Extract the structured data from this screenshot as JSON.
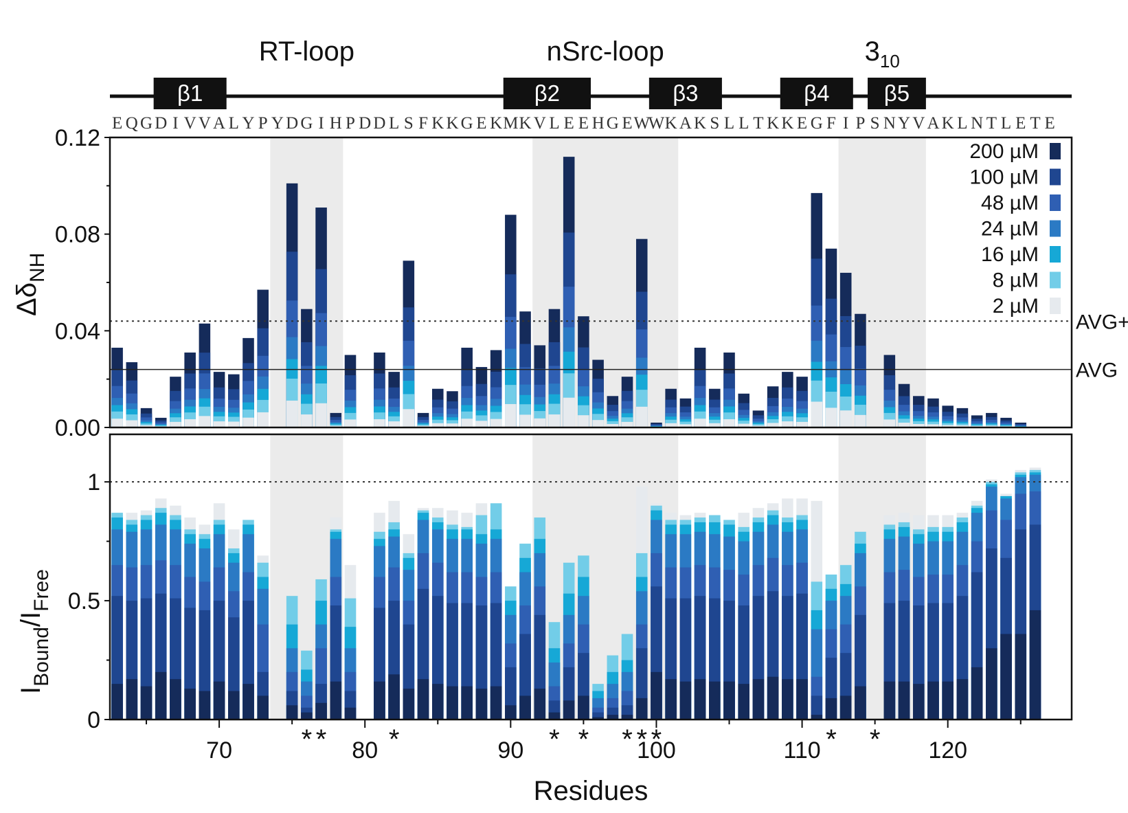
{
  "figure": {
    "sequence": "EQGDIVVALYPYDGIHPDDLSFKKGEKMKVLEEHGEWWKAKSLLTKKEGFIPSNYVAKLNTLETE",
    "first_residue": 63,
    "loops": [
      {
        "label": "RT-loop",
        "from": 73.5,
        "to": 78.5
      },
      {
        "label": "nSrc-loop",
        "from": 91.5,
        "to": 101.5
      },
      {
        "label": "3",
        "sub": "10",
        "from": 112.5,
        "to": 118.5
      }
    ],
    "strands": [
      {
        "label": "β1",
        "from": 66,
        "to": 70
      },
      {
        "label": "β2",
        "from": 90,
        "to": 95
      },
      {
        "label": "β3",
        "from": 100,
        "to": 104
      },
      {
        "label": "β4",
        "from": 109,
        "to": 113
      },
      {
        "label": "β5",
        "from": 115,
        "to": 118
      }
    ],
    "upper_avg_labels": {
      "avg_plus": "AVG+",
      "avg": "AVG"
    },
    "upper_ylabel": {
      "main": "Δδ",
      "sub": "NH"
    },
    "lower_ylabel": {
      "main": "I",
      "sub1": "Bound",
      "mid": "/I",
      "sub2": "Free"
    },
    "xlabel": "Residues",
    "star_glyph": "*"
  },
  "colors": {
    "200": "#152b5a",
    "100": "#1f4690",
    "48": "#2f5fb3",
    "24": "#2b7ac4",
    "16": "#16a8d6",
    "8": "#72cde8",
    "2": "#e6eaee",
    "shade": "#ebebeb"
  },
  "chart_data": [
    {
      "type": "bar",
      "stacked": true,
      "ylabel": "ΔδNH",
      "xlim": [
        62.5,
        128.5
      ],
      "ylim": [
        0,
        0.12
      ],
      "yticks": [
        "0.00",
        "0.04",
        "0.08",
        "0.12"
      ],
      "avg": 0.024,
      "avg_plus_sd": 0.044,
      "series_order": [
        "2 µM",
        "8 µM",
        "16 µM",
        "24 µM",
        "48 µM",
        "100 µM",
        "200 µM"
      ],
      "legend": [
        "200 µM",
        "100 µM",
        "48 µM",
        "24 µM",
        "16 µM",
        "8 µM",
        "2 µM"
      ],
      "legend_position": "top-right",
      "residues": [
        63,
        64,
        65,
        66,
        67,
        68,
        69,
        70,
        71,
        72,
        73,
        75,
        76,
        77,
        78,
        79,
        81,
        82,
        83,
        84,
        85,
        86,
        87,
        88,
        89,
        90,
        91,
        92,
        93,
        94,
        95,
        96,
        97,
        98,
        99,
        100,
        101,
        102,
        103,
        104,
        105,
        106,
        107,
        108,
        109,
        110,
        111,
        112,
        113,
        114,
        116,
        117,
        118,
        119,
        120,
        121,
        122,
        123,
        124,
        125,
        126,
        127,
        128
      ],
      "totals": [
        0.033,
        0.027,
        0.008,
        0.004,
        0.021,
        0.031,
        0.043,
        0.023,
        0.022,
        0.037,
        0.057,
        0.101,
        0.049,
        0.091,
        0.006,
        0.03,
        0.031,
        0.023,
        0.069,
        0.006,
        0.016,
        0.015,
        0.033,
        0.025,
        0.032,
        0.088,
        0.048,
        0.034,
        0.049,
        0.112,
        0.046,
        0.028,
        0.013,
        0.021,
        0.078,
        0.002,
        0.016,
        0.012,
        0.033,
        0.016,
        0.031,
        0.014,
        0.007,
        0.017,
        0.023,
        0.021,
        0.097,
        0.074,
        0.064,
        0.047,
        0.03,
        0.018,
        0.013,
        0.012,
        0.009,
        0.008,
        0.005,
        0.006,
        0.004,
        0.002,
        0,
        0,
        0
      ],
      "series": [
        {
          "name": "2 µM",
          "fraction": 0.11
        },
        {
          "name": "8 µM",
          "fraction": 0.2
        },
        {
          "name": "16 µM",
          "fraction": 0.28
        },
        {
          "name": "24 µM",
          "fraction": 0.37
        },
        {
          "name": "48 µM",
          "fraction": 0.52
        },
        {
          "name": "100 µM",
          "fraction": 0.72
        },
        {
          "name": "200 µM",
          "fraction": 1.0
        }
      ]
    },
    {
      "type": "bar",
      "stacked": true,
      "ylabel": "IBound/IFree",
      "xlabel": "Residues",
      "xlim": [
        62.5,
        128.5
      ],
      "ylim": [
        0,
        1.2
      ],
      "yticks": [
        "0",
        "0.5",
        "1"
      ],
      "xticks": [
        "70",
        "80",
        "90",
        "100",
        "110",
        "120"
      ],
      "reference_line": 1.0,
      "residues": [
        63,
        64,
        65,
        66,
        67,
        68,
        69,
        70,
        71,
        72,
        73,
        75,
        76,
        77,
        78,
        79,
        81,
        82,
        83,
        84,
        85,
        86,
        87,
        88,
        89,
        90,
        91,
        92,
        93,
        94,
        95,
        96,
        97,
        98,
        99,
        100,
        101,
        102,
        103,
        104,
        105,
        106,
        107,
        108,
        109,
        110,
        111,
        112,
        113,
        114,
        116,
        117,
        118,
        119,
        120,
        121,
        122,
        123,
        124,
        125,
        126,
        127,
        128
      ],
      "concentrations": [
        "2 µM",
        "8 µM",
        "16 µM",
        "24 µM",
        "48 µM",
        "100 µM",
        "200 µM"
      ],
      "values": {
        "2 µM": [
          0.86,
          0.87,
          0.88,
          0.93,
          0.9,
          0.85,
          0.82,
          0.91,
          0.8,
          0.8,
          0.69,
          0.52,
          0.29,
          0.59,
          0.85,
          0.65,
          0.87,
          0.92,
          0.78,
          0.89,
          0.89,
          0.88,
          0.87,
          0.91,
          0.89,
          0.56,
          0.74,
          0.85,
          0.41,
          0.66,
          0.69,
          0.15,
          0.27,
          0.36,
          0.98,
          0.91,
          0.87,
          0.86,
          0.87,
          0.86,
          0.84,
          0.87,
          0.89,
          0.91,
          0.93,
          0.93,
          0.92,
          0.61,
          0.65,
          0.79,
          0.86,
          0.87,
          0.86,
          0.86,
          0.86,
          0.87,
          0.92,
          1.01,
          0.95,
          1.05,
          1.06,
          0,
          0
        ],
        "8 µM": [
          0.87,
          0.84,
          0.86,
          0.89,
          0.86,
          0.8,
          0.78,
          0.84,
          0.72,
          0.84,
          0.66,
          0.52,
          0.29,
          0.59,
          0.8,
          0.51,
          0.79,
          0.83,
          0.7,
          0.88,
          0.85,
          0.82,
          0.81,
          0.86,
          0.91,
          0.56,
          0.74,
          0.85,
          0.41,
          0.66,
          0.69,
          0.15,
          0.27,
          0.36,
          0.7,
          0.9,
          0.84,
          0.84,
          0.85,
          0.86,
          0.84,
          0.81,
          0.85,
          0.88,
          0.85,
          0.86,
          0.58,
          0.61,
          0.65,
          0.79,
          0.82,
          0.83,
          0.8,
          0.81,
          0.81,
          0.85,
          0.9,
          1.0,
          0.94,
          1.04,
          1.05,
          0,
          0
        ],
        "16 µM": [
          0.85,
          0.82,
          0.84,
          0.87,
          0.84,
          0.78,
          0.76,
          0.82,
          0.7,
          0.82,
          0.6,
          0.4,
          0.21,
          0.5,
          0.79,
          0.39,
          0.76,
          0.8,
          0.68,
          0.87,
          0.83,
          0.8,
          0.8,
          0.78,
          0.8,
          0.5,
          0.68,
          0.76,
          0.3,
          0.53,
          0.6,
          0.12,
          0.2,
          0.25,
          0.6,
          0.88,
          0.82,
          0.82,
          0.83,
          0.83,
          0.82,
          0.79,
          0.83,
          0.86,
          0.83,
          0.84,
          0.46,
          0.55,
          0.57,
          0.74,
          0.8,
          0.81,
          0.78,
          0.79,
          0.79,
          0.83,
          0.89,
          0.99,
          0.94,
          1.03,
          1.04,
          0,
          0
        ],
        "24 µM": [
          0.8,
          0.79,
          0.8,
          0.82,
          0.8,
          0.74,
          0.72,
          0.78,
          0.66,
          0.78,
          0.55,
          0.3,
          0.16,
          0.4,
          0.76,
          0.3,
          0.73,
          0.77,
          0.63,
          0.84,
          0.8,
          0.76,
          0.76,
          0.74,
          0.76,
          0.44,
          0.62,
          0.7,
          0.24,
          0.44,
          0.52,
          0.09,
          0.15,
          0.2,
          0.54,
          0.84,
          0.78,
          0.78,
          0.79,
          0.78,
          0.77,
          0.75,
          0.79,
          0.82,
          0.79,
          0.8,
          0.38,
          0.5,
          0.52,
          0.7,
          0.76,
          0.77,
          0.74,
          0.75,
          0.75,
          0.79,
          0.87,
          0.98,
          0.93,
          1.02,
          1.03,
          0,
          0
        ],
        "48 µM": [
          0.65,
          0.64,
          0.65,
          0.67,
          0.65,
          0.6,
          0.58,
          0.64,
          0.54,
          0.62,
          0.4,
          0.2,
          0.1,
          0.3,
          0.6,
          0.2,
          0.6,
          0.64,
          0.5,
          0.7,
          0.66,
          0.62,
          0.62,
          0.6,
          0.62,
          0.32,
          0.48,
          0.56,
          0.14,
          0.32,
          0.4,
          0.05,
          0.09,
          0.12,
          0.4,
          0.7,
          0.64,
          0.64,
          0.65,
          0.64,
          0.63,
          0.61,
          0.65,
          0.68,
          0.65,
          0.66,
          0.18,
          0.38,
          0.4,
          0.56,
          0.62,
          0.63,
          0.6,
          0.61,
          0.61,
          0.65,
          0.75,
          0.88,
          0.84,
          0.95,
          0.96,
          0,
          0
        ],
        "100 µM": [
          0.52,
          0.5,
          0.51,
          0.53,
          0.51,
          0.47,
          0.46,
          0.5,
          0.43,
          0.5,
          0.2,
          0.12,
          0.05,
          0.15,
          0.48,
          0.12,
          0.47,
          0.5,
          0.4,
          0.55,
          0.52,
          0.49,
          0.49,
          0.48,
          0.49,
          0.22,
          0.36,
          0.44,
          0.08,
          0.22,
          0.28,
          0.03,
          0.05,
          0.06,
          0.3,
          0.56,
          0.51,
          0.51,
          0.52,
          0.51,
          0.5,
          0.48,
          0.52,
          0.54,
          0.52,
          0.53,
          0.1,
          0.26,
          0.28,
          0.44,
          0.49,
          0.5,
          0.48,
          0.49,
          0.49,
          0.52,
          0.62,
          0.72,
          0.68,
          0.8,
          0.82,
          0,
          0
        ],
        "200 µM": [
          0.15,
          0.17,
          0.14,
          0.2,
          0.17,
          0.13,
          0.12,
          0.16,
          0.12,
          0.15,
          0.1,
          0.06,
          0.03,
          0.07,
          0.16,
          0.05,
          0.16,
          0.19,
          0.13,
          0.17,
          0.15,
          0.14,
          0.14,
          0.13,
          0.14,
          0.06,
          0.1,
          0.13,
          0.03,
          0.08,
          0.1,
          0.01,
          0.02,
          0.02,
          0.09,
          0.2,
          0.17,
          0.16,
          0.17,
          0.16,
          0.16,
          0.15,
          0.17,
          0.18,
          0.17,
          0.17,
          0.02,
          0.09,
          0.1,
          0.14,
          0.16,
          0.16,
          0.15,
          0.16,
          0.16,
          0.17,
          0.22,
          0.3,
          0.36,
          0.36,
          0.46,
          0,
          0
        ]
      },
      "stars": [
        76.5,
        82,
        93,
        95,
        99
      ]
    }
  ]
}
